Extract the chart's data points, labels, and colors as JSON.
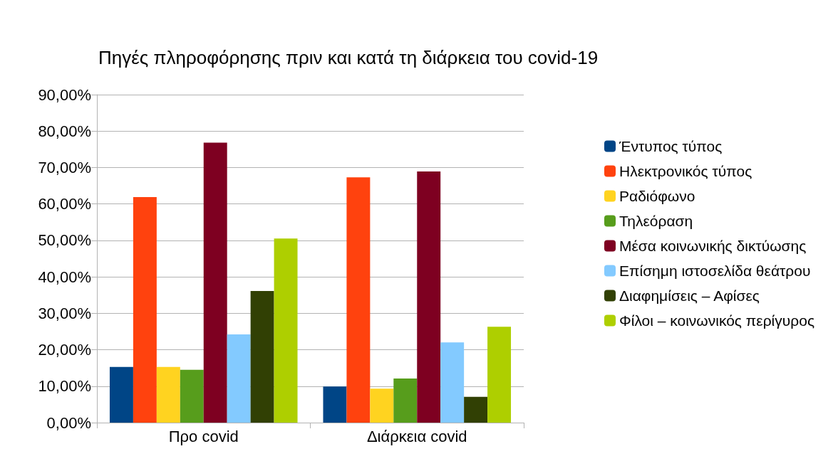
{
  "chart_data": {
    "type": "bar",
    "title": "Πηγές πληροφόρησης πριν και κατά τη διάρκεια του covid-19",
    "categories": [
      "Προ covid",
      "Διάρκεια covid"
    ],
    "series": [
      {
        "name": "Έντυπος τύπος",
        "color": "#004586",
        "values": [
          15.3,
          9.9
        ]
      },
      {
        "name": "Ηλεκτρονικός τύπος",
        "color": "#ff420e",
        "values": [
          61.9,
          67.3
        ]
      },
      {
        "name": "Ραδιόφωνο",
        "color": "#ffd320",
        "values": [
          15.3,
          9.3
        ]
      },
      {
        "name": "Τηλεόραση",
        "color": "#579d1c",
        "values": [
          14.5,
          12.1
        ]
      },
      {
        "name": "Μέσα κοινωνικής δικτύωσης",
        "color": "#7e0021",
        "values": [
          76.8,
          68.9
        ]
      },
      {
        "name": "Επίσημη ιστοσελίδα θεάτρου",
        "color": "#83caff",
        "values": [
          24.2,
          22.0
        ]
      },
      {
        "name": "Διαφημίσεις – Αφίσες",
        "color": "#314004",
        "values": [
          36.1,
          7.1
        ]
      },
      {
        "name": "Φίλοι – κοινωνικός περίγυρος",
        "color": "#aecf00",
        "values": [
          50.5,
          26.3
        ]
      }
    ],
    "ylim": [
      0,
      90
    ],
    "yticks": [
      {
        "value": 0,
        "label": "0,00%"
      },
      {
        "value": 10,
        "label": "10,00%"
      },
      {
        "value": 20,
        "label": "20,00%"
      },
      {
        "value": 30,
        "label": "30,00%"
      },
      {
        "value": 40,
        "label": "40,00%"
      },
      {
        "value": 50,
        "label": "50,00%"
      },
      {
        "value": 60,
        "label": "60,00%"
      },
      {
        "value": 70,
        "label": "70,00%"
      },
      {
        "value": 80,
        "label": "80,00%"
      },
      {
        "value": 90,
        "label": "90,00%"
      }
    ],
    "grid": "y",
    "legend": "right"
  }
}
